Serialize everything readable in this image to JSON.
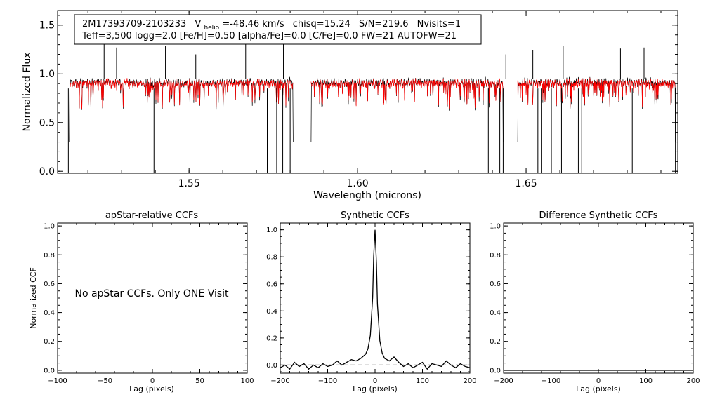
{
  "chart_data": [
    {
      "type": "line",
      "id": "spectrum",
      "annotation_line1_parts": {
        "star": "2M17393709-2103233",
        "vhelio_label": "V",
        "vhelio_sub": "helio",
        "vhelio_value": "=-48.46 km/s",
        "chisq": "chisq=15.24",
        "sn": "S/N=219.6",
        "nvisits": "Nvisits=1"
      },
      "annotation_line2": "Teff=3,500 logg=2.0 [Fe/H]=0.50 [alpha/Fe]=0.0 [C/Fe]=0.0 FW=21 AUTOFW=21",
      "xlabel": "Wavelength (microns)",
      "ylabel": "Normalized Flux",
      "xlim": [
        1.511,
        1.695
      ],
      "ylim": [
        -0.02,
        1.65
      ],
      "xticks": [
        1.55,
        1.6,
        1.65
      ],
      "xtick_labels": [
        "1.55",
        "1.60",
        "1.65"
      ],
      "yticks": [
        0.0,
        0.5,
        1.0,
        1.5
      ],
      "ytick_labels": [
        "0.0",
        "0.5",
        "1.0",
        "1.5"
      ],
      "chips": [
        [
          1.5145,
          1.5809
        ],
        [
          1.5862,
          1.6432
        ],
        [
          1.6475,
          1.6943
        ]
      ],
      "series": [
        {
          "role": "observed",
          "color": "#000000"
        },
        {
          "role": "model",
          "color": "#ff0000"
        }
      ],
      "observed_emission_spikes": [
        {
          "x": 1.5248,
          "y": 1.35
        },
        {
          "x": 1.5285,
          "y": 1.27
        },
        {
          "x": 1.5334,
          "y": 1.29
        },
        {
          "x": 1.543,
          "y": 1.29
        },
        {
          "x": 1.552,
          "y": 1.2
        },
        {
          "x": 1.5668,
          "y": 1.37
        },
        {
          "x": 1.578,
          "y": 1.33
        },
        {
          "x": 1.644,
          "y": 1.2
        },
        {
          "x": 1.652,
          "y": 1.24
        },
        {
          "x": 1.661,
          "y": 1.29
        },
        {
          "x": 1.678,
          "y": 1.26
        },
        {
          "x": 1.685,
          "y": 1.27
        }
      ],
      "observed_deep_drops": [
        1.5142,
        1.5396,
        1.5732,
        1.576,
        1.5778,
        1.58,
        1.6388,
        1.6422,
        1.6432,
        1.6535,
        1.6545,
        1.6575,
        1.6605,
        1.6655,
        1.6665,
        1.6815,
        1.6943
      ]
    },
    {
      "type": "line",
      "id": "apstar-ccf",
      "title": "apStar-relative CCFs",
      "xlabel": "Lag (pixels)",
      "ylabel": "Normalized CCF",
      "xlim": [
        -100,
        100
      ],
      "ylim": [
        -0.02,
        1.02
      ],
      "xticks": [
        -100,
        -50,
        0,
        50,
        100
      ],
      "xtick_labels": [
        "−100",
        "−50",
        "0",
        "50",
        "100"
      ],
      "yticks": [
        0.0,
        0.2,
        0.4,
        0.6,
        0.8,
        1.0
      ],
      "ytick_labels": [
        "0.0",
        "0.2",
        "0.4",
        "0.6",
        "0.8",
        "1.0"
      ],
      "message": "No apStar CCFs.  Only ONE Visit",
      "series": []
    },
    {
      "type": "line",
      "id": "synthetic-ccf",
      "title": "Synthetic CCFs",
      "xlabel": "Lag (pixels)",
      "ylabel": "",
      "xlim": [
        -200,
        200
      ],
      "ylim": [
        -0.06,
        1.05
      ],
      "xticks": [
        -200,
        -100,
        0,
        100,
        200
      ],
      "xtick_labels": [
        "−200",
        "−100",
        "0",
        "100",
        "200"
      ],
      "yticks": [
        0.0,
        0.2,
        0.4,
        0.6,
        0.8,
        1.0
      ],
      "ytick_labels": [
        "0.0",
        "0.2",
        "0.4",
        "0.6",
        "0.8",
        "1.0"
      ],
      "baseline": 0.0,
      "series": [
        {
          "color": "#000000",
          "x": [
            -200,
            -190,
            -180,
            -170,
            -160,
            -150,
            -140,
            -130,
            -120,
            -110,
            -100,
            -90,
            -80,
            -70,
            -60,
            -50,
            -40,
            -30,
            -20,
            -15,
            -10,
            -5,
            -3,
            0,
            3,
            5,
            10,
            15,
            20,
            30,
            40,
            50,
            60,
            70,
            80,
            90,
            100,
            110,
            120,
            130,
            140,
            150,
            160,
            170,
            180,
            190,
            200
          ],
          "y": [
            -0.02,
            0.0,
            -0.03,
            0.02,
            -0.01,
            0.01,
            -0.03,
            0.0,
            -0.02,
            0.01,
            -0.01,
            0.0,
            0.03,
            0.0,
            0.02,
            0.04,
            0.03,
            0.05,
            0.08,
            0.12,
            0.22,
            0.5,
            0.8,
            1.0,
            0.75,
            0.45,
            0.18,
            0.09,
            0.05,
            0.03,
            0.06,
            0.02,
            -0.01,
            0.01,
            -0.02,
            0.0,
            0.02,
            -0.03,
            0.01,
            0.0,
            -0.01,
            0.03,
            0.0,
            -0.02,
            0.01,
            -0.01,
            -0.02
          ]
        }
      ]
    },
    {
      "type": "line",
      "id": "difference-ccf",
      "title": "Difference Synthetic CCFs",
      "xlabel": "Lag (pixels)",
      "ylabel": "",
      "xlim": [
        -200,
        200
      ],
      "ylim": [
        -0.02,
        1.02
      ],
      "xticks": [
        -200,
        -100,
        0,
        100,
        200
      ],
      "xtick_labels": [
        "−200",
        "−100",
        "0",
        "100",
        "200"
      ],
      "yticks": [
        0.0,
        0.2,
        0.4,
        0.6,
        0.8,
        1.0
      ],
      "ytick_labels": [
        "0.0",
        "0.2",
        "0.4",
        "0.6",
        "0.8",
        "1.0"
      ],
      "series": [
        {
          "color": "#000000",
          "x": [
            -200,
            200
          ],
          "y": [
            0.0,
            0.0
          ]
        }
      ]
    }
  ]
}
